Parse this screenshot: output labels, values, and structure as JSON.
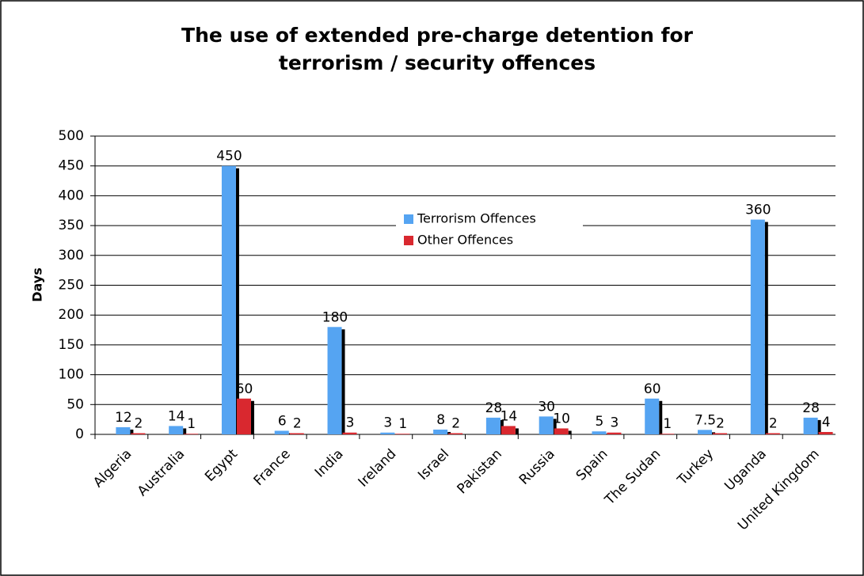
{
  "chart_data": {
    "type": "bar",
    "title": "The use of extended pre-charge detention for terrorism / security offences",
    "y_label": "Days",
    "categories": [
      "Algeria",
      "Australia",
      "Egypt",
      "France",
      "India",
      "Ireland",
      "Israel",
      "Pakistan",
      "Russia",
      "Spain",
      "The Sudan",
      "Turkey",
      "Uganda",
      "United Kingdom"
    ],
    "series": [
      {
        "name": "Terrorism Offences",
        "color": "#55a4f2",
        "values": [
          12,
          14,
          450,
          6,
          180,
          3,
          8,
          28,
          30,
          5,
          60,
          7.5,
          360,
          28
        ]
      },
      {
        "name": "Other Offences",
        "color": "#d9282f",
        "values": [
          2,
          1,
          60,
          2,
          3,
          1,
          2,
          14,
          10,
          3,
          1,
          2,
          2,
          4
        ]
      }
    ],
    "ylim": [
      0,
      500
    ],
    "yticks": [
      0,
      50,
      100,
      150,
      200,
      250,
      300,
      350,
      400,
      450,
      500
    ],
    "grid": true
  }
}
